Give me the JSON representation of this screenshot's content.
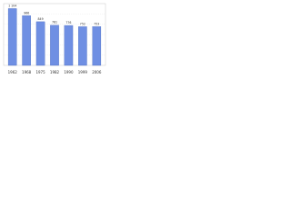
{
  "chart_data": {
    "type": "bar",
    "categories": [
      "1962",
      "1968",
      "1975",
      "1982",
      "1990",
      "1999",
      "2006"
    ],
    "values": [
      1104,
      966,
      849,
      781,
      776,
      752,
      753
    ],
    "value_labels": [
      "1 104",
      "966",
      "849",
      "781",
      "776",
      "752",
      "753"
    ],
    "color": "#6f8fe3",
    "ylim": [
      0,
      1200
    ],
    "grid": true
  }
}
